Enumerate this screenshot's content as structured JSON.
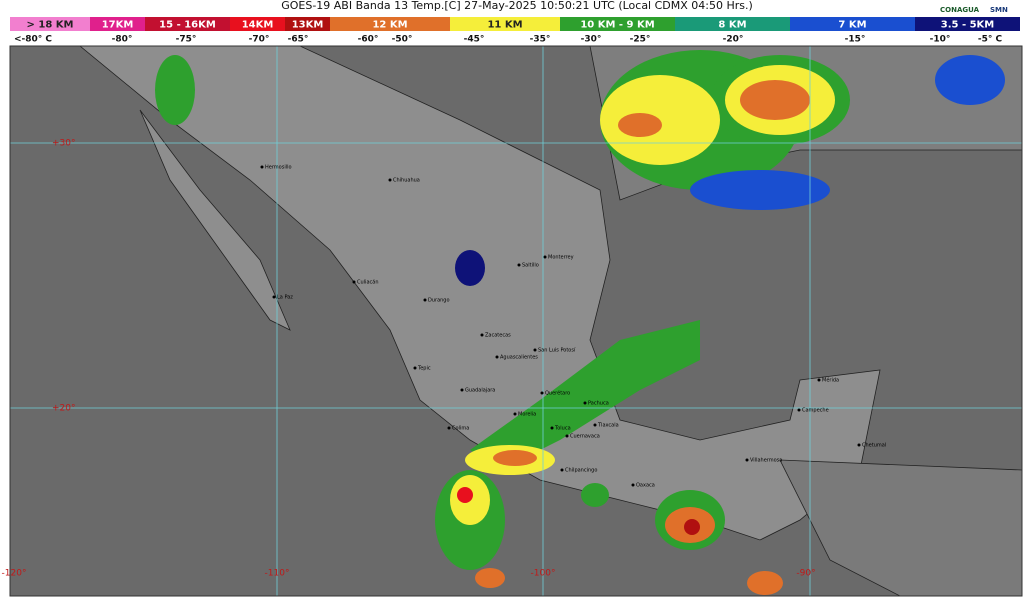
{
  "header": {
    "title": "GOES-19 ABI Banda 13 Temp.[C] 27-May-2025 10:50:21 UTC (Local CDMX  04:50 Hrs.)",
    "logos": [
      "CONAGUA",
      "SMN"
    ]
  },
  "legend": {
    "items": [
      {
        "label": "> 18 KM",
        "color": "#f27fcf",
        "x0": 10,
        "x1": 90
      },
      {
        "label": "17KM",
        "color": "#e0208c",
        "x0": 90,
        "x1": 145
      },
      {
        "label": "15 - 16KM",
        "color": "#c21030",
        "x0": 145,
        "x1": 230
      },
      {
        "label": "14KM",
        "color": "#e8101e",
        "x0": 230,
        "x1": 285
      },
      {
        "label": "13KM",
        "color": "#b01010",
        "x0": 285,
        "x1": 330
      },
      {
        "label": "12 KM",
        "color": "#e0702a",
        "x0": 330,
        "x1": 450
      },
      {
        "label": "11 KM",
        "color": "#f5ee3a",
        "x0": 450,
        "x1": 560
      },
      {
        "label": "10 KM - 9 KM",
        "color": "#2ea02e",
        "x0": 560,
        "x1": 675
      },
      {
        "label": "8 KM",
        "color": "#1a9a78",
        "x0": 675,
        "x1": 790
      },
      {
        "label": "7 KM",
        "color": "#1a4fd0",
        "x0": 790,
        "x1": 915
      },
      {
        "label": "3.5 - 5KM",
        "color": "#0e1278",
        "x0": 915,
        "x1": 1020
      }
    ],
    "temperatures": [
      "<-80° C",
      "-80°",
      "-75°",
      "-70°",
      "-65°",
      "-60°",
      "-50°",
      "-45°",
      "-35°",
      "-30°",
      "-25°",
      "-20°",
      "-15°",
      "-10°",
      "-5° C"
    ]
  },
  "grid": {
    "latitudes": [
      "+30°",
      "+20°"
    ],
    "longitudes": [
      "-120°",
      "-110°",
      "-100°",
      "-90°"
    ]
  },
  "cities": [
    "Hermosillo",
    "Chihuahua",
    "Monterrey",
    "Saltillo",
    "Culiacán",
    "La Paz",
    "Durango",
    "Zacatecas",
    "San Luis Potosí",
    "Aguascalientes",
    "Tepic",
    "Guadalajara",
    "Querétaro",
    "Morelia",
    "Colima",
    "Pachuca",
    "Toluca",
    "Cuernavaca",
    "Tlaxcala",
    "Chilpancingo",
    "Oaxaca",
    "Villahermosa",
    "Campeche",
    "Mérida",
    "Chetumal"
  ]
}
